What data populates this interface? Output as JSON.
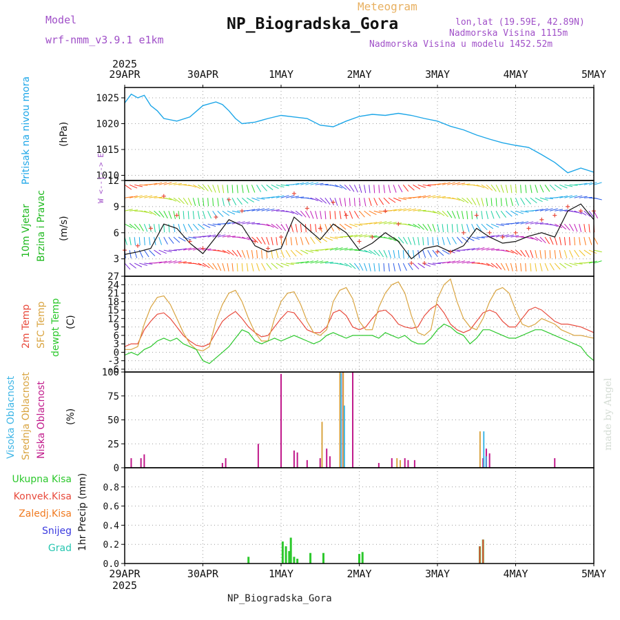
{
  "header": {
    "model_label": "Model",
    "model_name": "wrf-nmm_v3.9.1 e1km",
    "meteogram_label": "Meteogram",
    "station_title": "NP_Biogradska_Gora",
    "lonlat": "lon,lat (19.59E, 42.89N)",
    "elevation": "Nadmorska Visina 1115m",
    "model_elevation": "Nadmorska Visina u modelu 1452.52m",
    "footer_title": "NP_Biogradska_Gora",
    "credit": "made by Angel"
  },
  "time_axis": {
    "year": "2025",
    "labels": [
      "29APR",
      "30APR",
      "1MAY",
      "2MAY",
      "3MAY",
      "4MAY",
      "5MAY"
    ],
    "hours_total": 144
  },
  "colors": {
    "pressure": "#1ca6e8",
    "t2m": "#e84a3c",
    "tsfc": "#d9a440",
    "dewpoint": "#2cc82c",
    "cloud_high": "#3fb6e6",
    "cloud_mid": "#d9a440",
    "cloud_low": "#c0188a",
    "precip_total": "#2cc82c",
    "precip_conv": "#e84a3c",
    "precip_frozen": "#f07a20",
    "precip_snow": "#3a3ae0",
    "precip_graupel": "#26c6b0",
    "wind_label": "#1cb81c",
    "model_text": "#a050c8",
    "meteogram_text": "#e8b060"
  },
  "chart_data": [
    {
      "type": "line",
      "panel": "pressure",
      "ylabel": "Pritisak na nivou mora",
      "unit": "(hPa)",
      "ylim": [
        1009,
        1027
      ],
      "yticks": [
        1010,
        1015,
        1020,
        1025
      ],
      "series": [
        {
          "name": "Pritisak na nivou mora",
          "x": [
            0,
            2,
            4,
            6,
            8,
            10,
            12,
            16,
            20,
            24,
            28,
            30,
            32,
            34,
            36,
            40,
            44,
            48,
            52,
            56,
            60,
            64,
            68,
            72,
            76,
            80,
            84,
            88,
            92,
            96,
            100,
            104,
            108,
            112,
            116,
            120,
            124,
            128,
            132,
            136,
            140,
            144
          ],
          "values": [
            1024,
            1025.7,
            1025,
            1025.5,
            1023.5,
            1022.5,
            1021,
            1020.5,
            1021.3,
            1023.5,
            1024.2,
            1023.7,
            1022.5,
            1021,
            1020,
            1020.3,
            1021,
            1021.6,
            1021.3,
            1021,
            1019.7,
            1019.4,
            1020.5,
            1021.4,
            1021.8,
            1021.6,
            1022,
            1021.6,
            1021,
            1020.5,
            1019.5,
            1018.8,
            1017.8,
            1017,
            1016.3,
            1015.8,
            1015.4,
            1014,
            1012.5,
            1010.5,
            1011.4,
            1010.6
          ]
        }
      ]
    },
    {
      "type": "line",
      "panel": "wind",
      "ylabel": "10m Vjetar Brzina i Pravac",
      "unit": "(m/s)",
      "compass": "W <--|--> E",
      "ylim": [
        1,
        12
      ],
      "yticks": [
        3,
        6,
        9,
        12
      ],
      "series": [
        {
          "name": "wind_speed",
          "x": [
            0,
            4,
            8,
            12,
            16,
            20,
            24,
            28,
            32,
            36,
            40,
            44,
            48,
            52,
            56,
            60,
            64,
            68,
            72,
            76,
            80,
            84,
            88,
            92,
            96,
            100,
            104,
            108,
            112,
            116,
            120,
            124,
            128,
            132,
            136,
            140,
            144
          ],
          "values": [
            3.5,
            3.8,
            4.2,
            7.0,
            6.5,
            4.8,
            3.6,
            5.5,
            7.5,
            6.8,
            4.5,
            3.8,
            4.2,
            7.8,
            6.5,
            5.2,
            7.0,
            6.0,
            4.0,
            4.8,
            6.0,
            5.0,
            3.0,
            4.2,
            4.5,
            3.8,
            4.5,
            6.5,
            5.5,
            4.8,
            5.0,
            5.6,
            6.0,
            5.5,
            8.5,
            9.3,
            7.5
          ]
        },
        {
          "name": "wind_gust",
          "x": [
            0,
            4,
            8,
            12,
            16,
            20,
            24,
            28,
            32,
            36,
            40,
            44,
            48,
            52,
            56,
            60,
            64,
            68,
            72,
            76,
            80,
            84,
            88,
            92,
            96,
            100,
            104,
            108,
            112,
            116,
            120,
            124,
            128,
            132,
            136,
            140,
            144
          ],
          "values": [
            4.0,
            4.5,
            6.5,
            10.2,
            8.0,
            5.0,
            4.2,
            7.8,
            9.8,
            8.5,
            5.0,
            4.2,
            5.5,
            10.5,
            8.8,
            6.5,
            9.5,
            8.0,
            5.0,
            5.5,
            8.5,
            7.0,
            2.5,
            2.5,
            3.8,
            3.8,
            6.0,
            8.0,
            6.0,
            5.5,
            6.0,
            6.5,
            7.5,
            8.0,
            9.0,
            8.5,
            8.5
          ]
        }
      ]
    },
    {
      "type": "line",
      "panel": "temperature",
      "ylabel": "2m Temp / SFC Temp / dewpt Temp",
      "unit": "(C)",
      "ylim": [
        -7,
        27
      ],
      "yticks": [
        -6,
        -3,
        0,
        3,
        6,
        9,
        12,
        15,
        18,
        21,
        24,
        27
      ],
      "series": [
        {
          "name": "2m Temp",
          "x": [
            0,
            2,
            4,
            6,
            8,
            10,
            12,
            14,
            16,
            18,
            20,
            22,
            24,
            26,
            28,
            30,
            32,
            34,
            36,
            38,
            40,
            42,
            44,
            46,
            48,
            50,
            52,
            54,
            56,
            58,
            60,
            62,
            64,
            66,
            68,
            70,
            72,
            74,
            76,
            78,
            80,
            82,
            84,
            86,
            88,
            90,
            92,
            94,
            96,
            98,
            100,
            102,
            104,
            106,
            108,
            110,
            112,
            114,
            116,
            118,
            120,
            122,
            124,
            126,
            128,
            130,
            132,
            134,
            136,
            138,
            140,
            142,
            144
          ],
          "values": [
            2,
            3,
            3,
            8,
            11,
            13.5,
            14,
            12,
            9,
            6,
            4,
            2.5,
            2,
            3,
            7,
            11,
            13,
            14.5,
            12,
            9,
            7,
            5.5,
            6,
            9,
            12,
            14.5,
            14,
            11,
            8,
            7,
            7,
            9,
            14,
            15,
            13,
            9,
            8,
            9,
            12,
            14.5,
            15,
            13,
            10,
            9,
            8.5,
            9,
            13,
            15.5,
            17,
            14,
            10,
            8,
            7,
            8,
            11,
            14,
            15,
            14,
            11,
            9,
            9,
            12,
            15,
            16,
            15,
            13,
            11,
            10,
            10,
            9.5,
            9,
            8,
            7
          ]
        },
        {
          "name": "SFC Temp",
          "x": [
            0,
            2,
            4,
            6,
            8,
            10,
            12,
            14,
            16,
            18,
            20,
            22,
            24,
            26,
            28,
            30,
            32,
            34,
            36,
            38,
            40,
            42,
            44,
            46,
            48,
            50,
            52,
            54,
            56,
            58,
            60,
            62,
            64,
            66,
            68,
            70,
            72,
            74,
            76,
            78,
            80,
            82,
            84,
            86,
            88,
            90,
            92,
            94,
            96,
            98,
            100,
            102,
            104,
            106,
            108,
            110,
            112,
            114,
            116,
            118,
            120,
            122,
            124,
            126,
            128,
            130,
            132,
            134,
            136,
            138,
            140,
            142,
            144
          ],
          "values": [
            1,
            1,
            2,
            10,
            16,
            19.5,
            20,
            17,
            12,
            7,
            3,
            1,
            0.5,
            2,
            11,
            17,
            21,
            22,
            18,
            12,
            7,
            4,
            4,
            12,
            18,
            21,
            21.5,
            17,
            11,
            7,
            6,
            8,
            18,
            22,
            23,
            19,
            11,
            8,
            8,
            16,
            21,
            24,
            25,
            21,
            13,
            7,
            6,
            8,
            19,
            24,
            26,
            18,
            12,
            9,
            8,
            12,
            18,
            22,
            23,
            21,
            15,
            10,
            9,
            10,
            12,
            11,
            10,
            8,
            7,
            6,
            6,
            5.5,
            5
          ]
        },
        {
          "name": "dewpt Temp",
          "x": [
            0,
            2,
            4,
            6,
            8,
            10,
            12,
            14,
            16,
            18,
            20,
            22,
            24,
            26,
            28,
            30,
            32,
            34,
            36,
            38,
            40,
            42,
            44,
            46,
            48,
            50,
            52,
            54,
            56,
            58,
            60,
            62,
            64,
            66,
            68,
            70,
            72,
            74,
            76,
            78,
            80,
            82,
            84,
            86,
            88,
            90,
            92,
            94,
            96,
            98,
            100,
            102,
            104,
            106,
            108,
            110,
            112,
            114,
            116,
            118,
            120,
            122,
            124,
            126,
            128,
            130,
            132,
            134,
            136,
            138,
            140,
            142,
            144
          ],
          "values": [
            -1,
            0,
            -1,
            1,
            2,
            4,
            5,
            4,
            5,
            3,
            2,
            1,
            -3,
            -4,
            -2,
            0,
            2,
            5,
            8,
            7,
            4,
            3,
            4,
            5,
            4,
            5,
            6,
            5,
            4,
            3,
            4,
            6,
            7,
            6,
            5,
            6,
            6,
            6,
            6,
            5,
            7,
            6,
            5,
            6,
            4,
            3,
            3,
            5,
            8,
            10,
            9,
            7,
            6,
            3,
            5,
            8,
            8,
            7,
            6,
            5,
            5,
            6,
            7,
            8,
            8,
            7,
            6,
            5,
            4,
            3,
            2,
            -1,
            -3
          ]
        }
      ]
    },
    {
      "type": "bar",
      "panel": "clouds",
      "ylabel": "Visoka Oblacnost / Srednja Oblacnost / Niska Oblacnost",
      "unit": "(%)",
      "ylim": [
        0,
        100
      ],
      "yticks": [
        0,
        25,
        50,
        75,
        100
      ],
      "series": [
        {
          "name": "Niska Oblacnost",
          "x": [
            2,
            5,
            6,
            30,
            31,
            41,
            48,
            52,
            53,
            56,
            60,
            62,
            63,
            67,
            70,
            78,
            82,
            86,
            87,
            89,
            110,
            111,
            112,
            132
          ],
          "values": [
            10,
            10,
            14,
            5,
            10,
            25,
            98,
            18,
            16,
            8,
            10,
            20,
            12,
            100,
            100,
            5,
            10,
            10,
            8,
            8,
            10,
            20,
            15,
            10
          ]
        },
        {
          "name": "Srednja Oblacnost",
          "x": [
            61,
            66.5,
            67.5,
            84,
            85,
            109.5
          ],
          "values": [
            48,
            100,
            100,
            10,
            8,
            38
          ]
        },
        {
          "name": "Visoka Oblacnost",
          "x": [
            66,
            67,
            109.8,
            110.5
          ],
          "values": [
            99,
            65,
            38,
            12
          ]
        }
      ]
    },
    {
      "type": "bar",
      "panel": "precip",
      "ylabel": "1hr Precip",
      "unit": "(mm)",
      "ylim": [
        0,
        1.0
      ],
      "yticks": [
        0.0,
        0.2,
        0.4,
        0.6,
        0.8
      ],
      "legend": [
        "Ukupna Kisa",
        "Konvek.Kisa",
        "Zaledj.Kisa",
        "Snijeg",
        "Grad"
      ],
      "series": [
        {
          "name": "Ukupna Kisa",
          "x": [
            38,
            48.5,
            49.5,
            50.5,
            51,
            52,
            53,
            57,
            61,
            72,
            73,
            109,
            110
          ],
          "values": [
            0.07,
            0.23,
            0.18,
            0.13,
            0.27,
            0.07,
            0.05,
            0.11,
            0.11,
            0.1,
            0.12,
            0.18,
            0.25
          ]
        },
        {
          "name": "Konvek.Kisa",
          "x": [
            109,
            110
          ],
          "values": [
            0.18,
            0.25
          ]
        }
      ]
    }
  ]
}
